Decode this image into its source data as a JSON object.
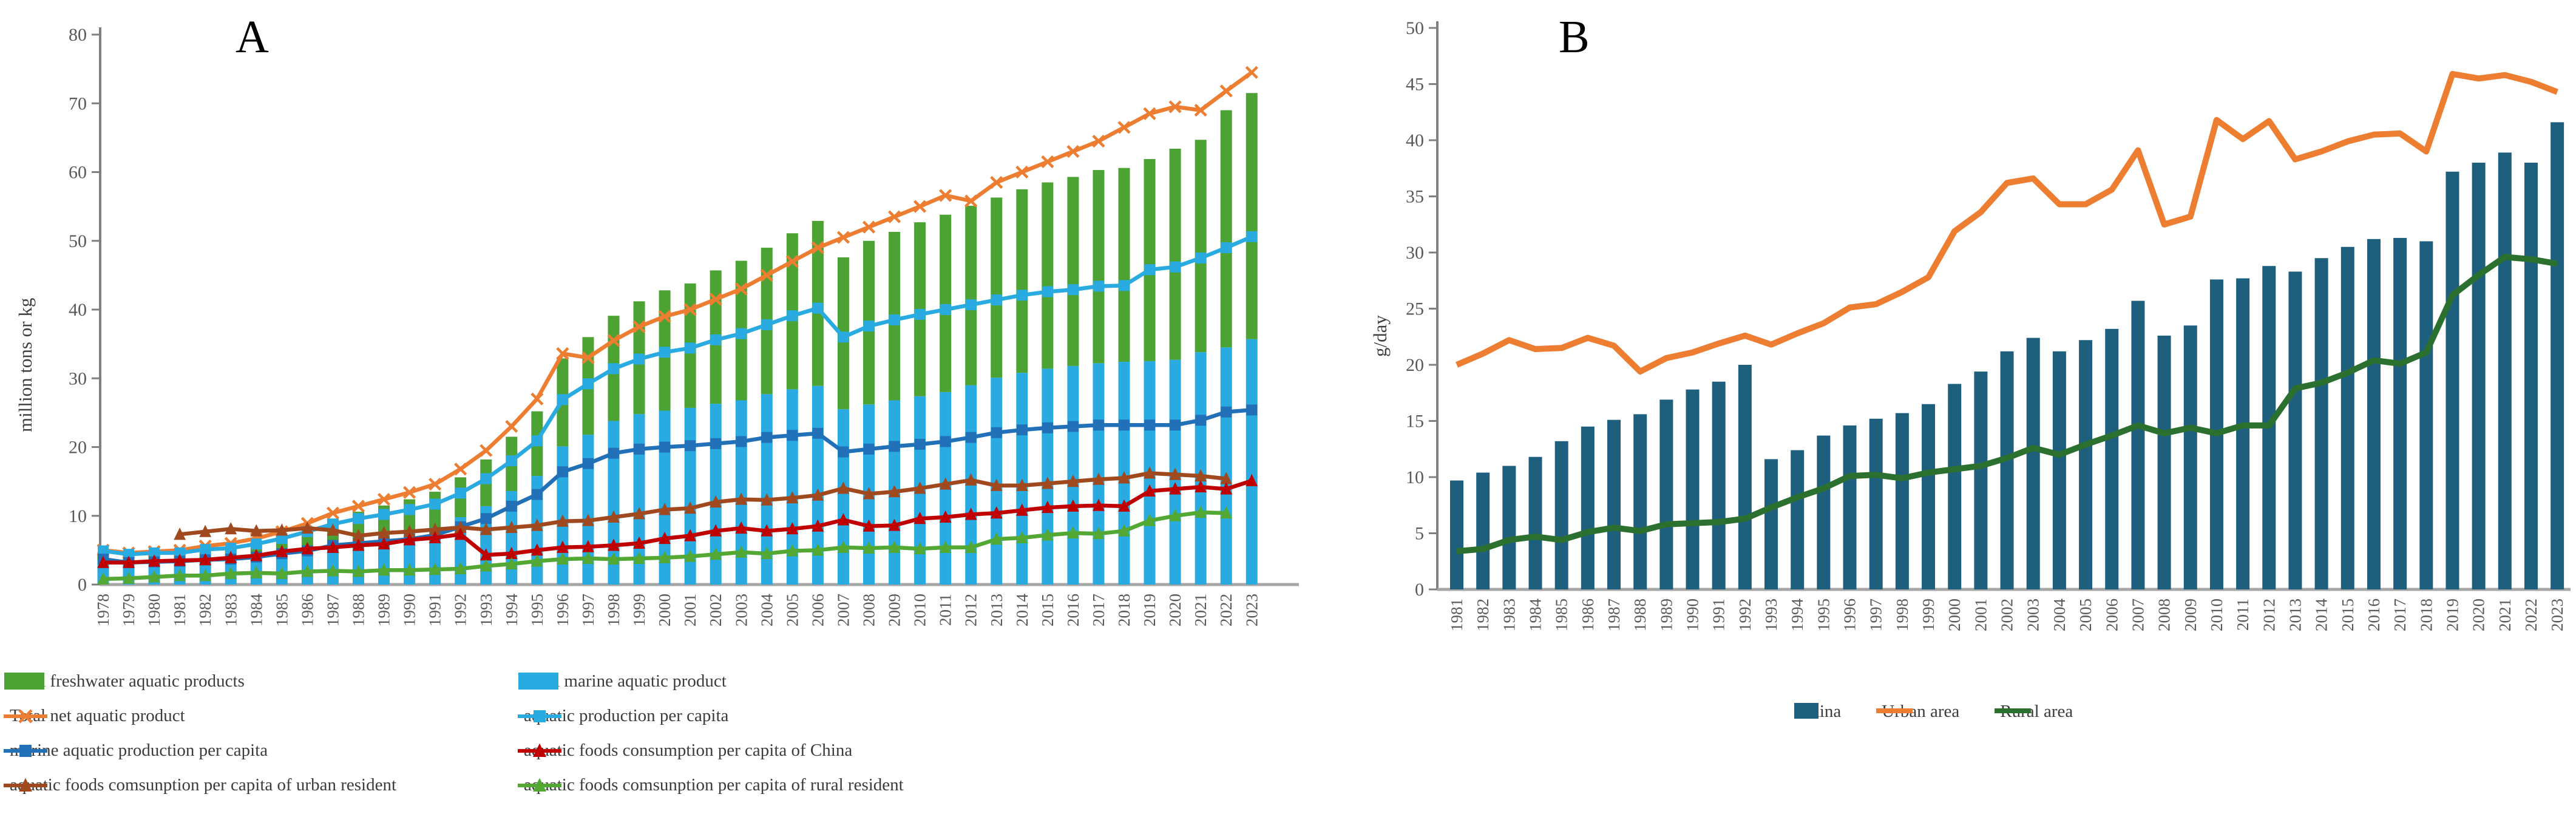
{
  "figure": {
    "panel_a_title": "A",
    "panel_b_title": "B",
    "panel_a_ylabel": "million tons or kg",
    "panel_b_ylabel": "g/day"
  },
  "chart_data": [
    {
      "type": "bar",
      "subtype": "stacked-bars-with-lines",
      "title": "A",
      "ylabel": "million tons or kg",
      "ylim": [
        0,
        80
      ],
      "ytick_step": 10,
      "grid": false,
      "years": [
        1978,
        1979,
        1980,
        1981,
        1982,
        1983,
        1984,
        1985,
        1986,
        1987,
        1988,
        1989,
        1990,
        1991,
        1992,
        1993,
        1994,
        1995,
        1996,
        1997,
        1998,
        1999,
        2000,
        2001,
        2002,
        2003,
        2004,
        2005,
        2006,
        2007,
        2008,
        2009,
        2010,
        2011,
        2012,
        2013,
        2014,
        2015,
        2016,
        2017,
        2018,
        2019,
        2020,
        2021,
        2022,
        2023
      ],
      "bars": {
        "stacked": true,
        "series": [
          {
            "name": "Total  marine aquatic product",
            "color": "#29ABE2",
            "values": [
              3.6,
              3.1,
              3.3,
              3.4,
              3.7,
              3.8,
              4.2,
              4.7,
              5.3,
              6.2,
              6.7,
              7.1,
              7.6,
              8.3,
              9.8,
              11.4,
              13.6,
              15.8,
              20.1,
              21.8,
              23.8,
              24.8,
              25.3,
              25.7,
              26.3,
              26.8,
              27.7,
              28.4,
              28.9,
              25.5,
              26.2,
              26.8,
              27.4,
              28.0,
              29.0,
              30.1,
              30.8,
              31.4,
              31.8,
              32.2,
              32.4,
              32.5,
              32.7,
              33.8,
              34.5,
              35.7
            ]
          },
          {
            "name": "Total  freshwater aquatic products",
            "color": "#4CA232",
            "values": [
              1.1,
              1.2,
              1.2,
              1.2,
              1.5,
              1.7,
              2.0,
              2.4,
              2.9,
              3.4,
              3.9,
              4.4,
              4.8,
              5.2,
              5.8,
              6.8,
              7.9,
              9.4,
              12.8,
              14.2,
              15.3,
              16.4,
              17.5,
              18.1,
              19.4,
              20.3,
              21.3,
              22.7,
              24.0,
              22.1,
              23.8,
              24.5,
              25.3,
              25.8,
              26.1,
              26.2,
              26.7,
              27.1,
              27.5,
              28.1,
              28.2,
              29.4,
              30.7,
              30.9,
              34.5,
              35.8
            ]
          }
        ]
      },
      "lines": [
        {
          "name": "Total net aquatic product",
          "color": "#ED7D31",
          "marker": "x",
          "values": [
            5.0,
            4.6,
            4.8,
            5.0,
            5.6,
            6.0,
            6.7,
            7.7,
            8.9,
            10.4,
            11.4,
            12.4,
            13.4,
            14.6,
            16.8,
            19.5,
            23.0,
            27.0,
            33.6,
            33.0,
            35.5,
            37.5,
            39.0,
            40.0,
            41.5,
            43.0,
            45.0,
            47.0,
            49.0,
            50.5,
            52.0,
            53.5,
            55.0,
            56.6,
            55.8,
            58.5,
            60.0,
            61.5,
            63.0,
            64.5,
            66.5,
            68.5,
            69.5,
            69.0,
            71.8,
            74.5
          ]
        },
        {
          "name": "aquatic production per capita",
          "color": "#29ABE2",
          "marker": "square",
          "values": [
            4.9,
            4.4,
            4.6,
            4.6,
            5.1,
            5.3,
            5.9,
            6.7,
            7.7,
            8.8,
            9.6,
            10.2,
            10.9,
            11.7,
            13.3,
            15.4,
            18.0,
            20.9,
            26.9,
            29.2,
            31.4,
            32.8,
            33.8,
            34.4,
            35.6,
            36.5,
            37.8,
            39.1,
            40.2,
            36.0,
            37.6,
            38.5,
            39.3,
            40.0,
            40.7,
            41.4,
            42.1,
            42.6,
            42.9,
            43.4,
            43.5,
            45.8,
            46.2,
            47.5,
            49.0,
            50.6
          ]
        },
        {
          "name": "marine aquatic production per capita",
          "color": "#2170B8",
          "marker": "square",
          "values": [
            3.7,
            3.2,
            3.3,
            3.4,
            3.6,
            3.7,
            4.0,
            4.5,
            4.9,
            5.7,
            6.0,
            6.3,
            6.6,
            7.2,
            8.4,
            9.6,
            11.4,
            13.1,
            16.4,
            17.6,
            19.1,
            19.7,
            20.0,
            20.2,
            20.5,
            20.8,
            21.4,
            21.7,
            22.0,
            19.3,
            19.7,
            20.1,
            20.4,
            20.8,
            21.4,
            22.1,
            22.5,
            22.8,
            23.0,
            23.2,
            23.2,
            23.2,
            23.2,
            23.9,
            25.1,
            25.4
          ]
        },
        {
          "name": "aquatic foods comsunption per capita of urban resident",
          "color": "#A0491F",
          "marker": "triangle",
          "values": [
            null,
            null,
            null,
            7.3,
            7.7,
            8.1,
            7.8,
            7.9,
            8.2,
            7.9,
            7.1,
            7.5,
            7.7,
            8.0,
            8.3,
            8.0,
            8.3,
            8.6,
            9.2,
            9.3,
            9.8,
            10.3,
            10.9,
            11.1,
            12.0,
            12.4,
            12.3,
            12.6,
            13.0,
            14.0,
            13.2,
            13.5,
            14.0,
            14.6,
            15.2,
            14.4,
            14.4,
            14.7,
            15.0,
            15.3,
            15.5,
            16.2,
            16.0,
            15.8,
            15.4,
            null
          ]
        },
        {
          "name": "aquatic foods consumption per capita of China",
          "color": "#C00000",
          "marker": "triangle",
          "values": [
            3.2,
            3.2,
            3.4,
            3.5,
            3.6,
            3.9,
            4.2,
            4.8,
            5.2,
            5.4,
            5.7,
            5.9,
            6.5,
            6.8,
            7.3,
            4.3,
            4.5,
            5.0,
            5.4,
            5.5,
            5.7,
            6.0,
            6.7,
            7.1,
            7.8,
            8.2,
            7.8,
            8.1,
            8.5,
            9.4,
            8.5,
            8.6,
            9.6,
            9.8,
            10.2,
            10.4,
            10.8,
            11.2,
            11.4,
            11.5,
            11.4,
            13.6,
            13.9,
            14.2,
            13.9,
            15.1
          ]
        },
        {
          "name": "aquatic foods comsunption per capita of rural resident",
          "color": "#53A733",
          "marker": "triangle",
          "values": [
            0.8,
            0.9,
            1.1,
            1.3,
            1.3,
            1.6,
            1.7,
            1.6,
            1.9,
            2.0,
            1.9,
            2.1,
            2.1,
            2.2,
            2.3,
            2.7,
            3.0,
            3.4,
            3.7,
            3.8,
            3.7,
            3.8,
            3.9,
            4.1,
            4.4,
            4.7,
            4.5,
            4.9,
            5.0,
            5.4,
            5.3,
            5.4,
            5.2,
            5.4,
            5.4,
            6.6,
            6.8,
            7.2,
            7.5,
            7.4,
            7.8,
            9.3,
            10.0,
            10.5,
            10.4,
            null
          ]
        }
      ],
      "legend": [
        {
          "label": "Total  freshwater aquatic products",
          "color": "#4CA232",
          "swatch": "bar",
          "marker": "none"
        },
        {
          "label": "Total  marine aquatic product",
          "color": "#29ABE2",
          "swatch": "bar",
          "marker": "none"
        },
        {
          "label": "Total net aquatic product",
          "color": "#ED7D31",
          "swatch": "line",
          "marker": "x"
        },
        {
          "label": "aquatic production per capita",
          "color": "#29ABE2",
          "swatch": "line",
          "marker": "square"
        },
        {
          "label": "marine aquatic production per capita",
          "color": "#2170B8",
          "swatch": "line",
          "marker": "square"
        },
        {
          "label": "aquatic foods consumption per capita of China",
          "color": "#C00000",
          "swatch": "line",
          "marker": "triangle"
        },
        {
          "label": "aquatic foods comsunption per capita of urban resident",
          "color": "#A0491F",
          "swatch": "line",
          "marker": "triangle"
        },
        {
          "label": "aquatic foods comsunption per capita of rural resident",
          "color": "#53A733",
          "swatch": "line",
          "marker": "triangle"
        }
      ]
    },
    {
      "type": "bar",
      "subtype": "bars-with-lines",
      "title": "B",
      "ylabel": "g/day",
      "ylim": [
        0,
        50
      ],
      "ytick_step": 5,
      "grid": false,
      "years": [
        1981,
        1982,
        1983,
        1984,
        1985,
        1986,
        1987,
        1988,
        1989,
        1990,
        1991,
        1992,
        1993,
        1994,
        1995,
        1996,
        1997,
        1998,
        1999,
        2000,
        2001,
        2002,
        2003,
        2004,
        2005,
        2006,
        2007,
        2008,
        2009,
        2010,
        2011,
        2012,
        2013,
        2014,
        2015,
        2016,
        2017,
        2018,
        2019,
        2020,
        2021,
        2022,
        2023
      ],
      "bars": {
        "stacked": false,
        "series": [
          {
            "name": "China",
            "color": "#1F5F7E",
            "values": [
              9.7,
              10.4,
              11.0,
              11.8,
              13.2,
              14.5,
              15.1,
              15.6,
              16.9,
              17.8,
              18.5,
              20.0,
              11.6,
              12.4,
              13.7,
              14.6,
              15.2,
              15.7,
              16.5,
              18.3,
              19.4,
              21.2,
              22.4,
              21.2,
              22.2,
              23.2,
              25.7,
              22.6,
              23.5,
              27.6,
              27.7,
              28.8,
              28.3,
              29.5,
              30.5,
              31.2,
              31.3,
              31.0,
              37.2,
              38.0,
              38.9,
              38.0,
              41.6
            ]
          }
        ]
      },
      "lines": [
        {
          "name": "Urban area",
          "color": "#ED7D31",
          "marker": "none",
          "values": [
            20.0,
            21.0,
            22.2,
            21.4,
            21.5,
            22.4,
            21.7,
            19.4,
            20.6,
            21.1,
            21.9,
            22.6,
            21.8,
            22.8,
            23.7,
            25.1,
            25.4,
            26.5,
            27.8,
            31.9,
            33.6,
            36.2,
            36.6,
            34.3,
            34.3,
            35.6,
            39.1,
            32.5,
            33.2,
            41.8,
            40.1,
            41.7,
            38.3,
            39.0,
            39.9,
            40.5,
            40.6,
            39.0,
            45.9,
            45.5,
            45.8,
            45.2,
            44.3
          ]
        },
        {
          "name": "Rural area",
          "color": "#2C7030",
          "marker": "none",
          "values": [
            3.4,
            3.6,
            4.4,
            4.7,
            4.4,
            5.1,
            5.5,
            5.2,
            5.8,
            5.9,
            6.0,
            6.3,
            7.3,
            8.2,
            9.0,
            10.1,
            10.2,
            9.9,
            10.4,
            10.7,
            11.0,
            11.7,
            12.6,
            12.0,
            12.9,
            13.7,
            14.6,
            13.9,
            14.4,
            13.9,
            14.6,
            14.6,
            17.9,
            18.4,
            19.3,
            20.4,
            20.1,
            21.1,
            26.2,
            28.0,
            29.6,
            29.4,
            29.0
          ]
        }
      ],
      "legend": [
        {
          "label": "China",
          "color": "#1F5F7E",
          "swatch": "bar-small",
          "marker": "none"
        },
        {
          "label": "Urban area",
          "color": "#ED7D31",
          "swatch": "line-plain",
          "marker": "none"
        },
        {
          "label": "Rural area",
          "color": "#2C7030",
          "swatch": "line-plain",
          "marker": "none"
        }
      ]
    }
  ]
}
